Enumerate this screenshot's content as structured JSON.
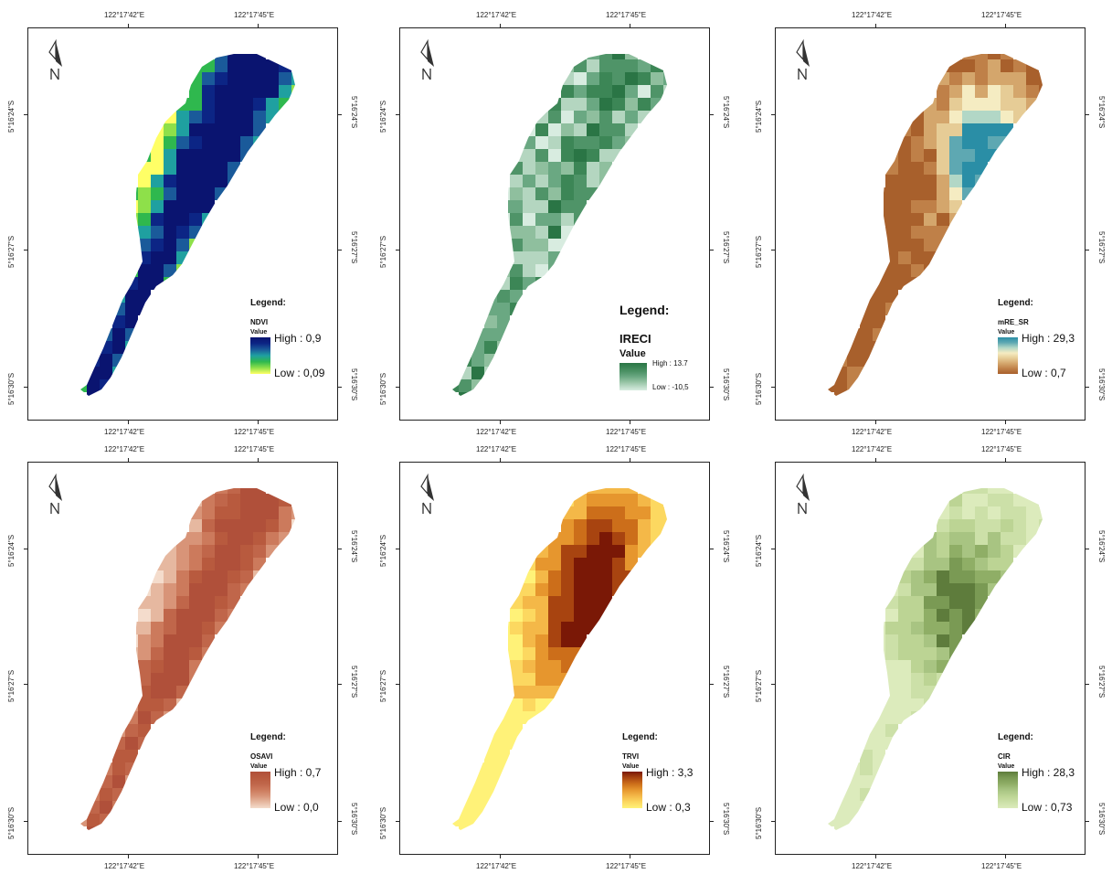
{
  "coords": {
    "lon_left": "122°17'42\"E",
    "lon_right": "122°17'45\"E",
    "lat_top": "5°16'24\"S",
    "lat_mid": "5°16'27\"S",
    "lat_bot": "5°16'30\"S"
  },
  "panels": [
    {
      "id": "ndvi",
      "legend_title": "Legend:",
      "index_name": "NDVI",
      "value_label": "Value",
      "high_label": "High : 0,9",
      "low_label": "Low : 0,09",
      "colors": [
        "#ffff66",
        "#8ee04a",
        "#2fb84e",
        "#1fa0a0",
        "#1a5a9a",
        "#0c2585",
        "#0a1470"
      ]
    },
    {
      "id": "ireci",
      "legend_title": "Legend:",
      "index_name": "IRECI",
      "value_label": "Value",
      "high_label": "High : 13.7",
      "low_label": "Low : -10,5",
      "colors": [
        "#d8ece0",
        "#b4d6c0",
        "#8fbf9e",
        "#6aa882",
        "#4f9468",
        "#3c8656",
        "#2a7545"
      ]
    },
    {
      "id": "mre_sr",
      "legend_title": "Legend:",
      "index_name": "mRE_SR",
      "value_label": "Value",
      "high_label": "High : 29,3",
      "low_label": "Low : 0,7",
      "colors": [
        "#a8602c",
        "#bf8048",
        "#d4a66c",
        "#e6cc96",
        "#f5ecc2",
        "#b2d7c6",
        "#5ea8b2",
        "#2a8ea6"
      ]
    },
    {
      "id": "osavi",
      "legend_title": "Legend:",
      "index_name": "OSAVI",
      "value_label": "Value",
      "high_label": "High : 0,7",
      "low_label": "Low : 0,0",
      "colors": [
        "#f4dccc",
        "#e6b8a0",
        "#d89478",
        "#cc7a5c",
        "#c0664a",
        "#b85a3e",
        "#b0503a"
      ]
    },
    {
      "id": "trvi",
      "legend_title": "Legend:",
      "index_name": "TRVI",
      "value_label": "Value",
      "high_label": "High : 3,3",
      "low_label": "Low : 0,3",
      "colors": [
        "#fff278",
        "#fcd860",
        "#f4b848",
        "#e6962e",
        "#cc6e1a",
        "#a84410",
        "#7a1806"
      ]
    },
    {
      "id": "cir",
      "legend_title": "Legend:",
      "index_name": "CIR",
      "value_label": "Value",
      "high_label": "High : 28,3",
      "low_label": "Low : 0,73",
      "colors": [
        "#dcebbc",
        "#cce0a8",
        "#bcd494",
        "#a8c482",
        "#8fae66",
        "#7a9a54",
        "#5e7c3c"
      ]
    }
  ]
}
